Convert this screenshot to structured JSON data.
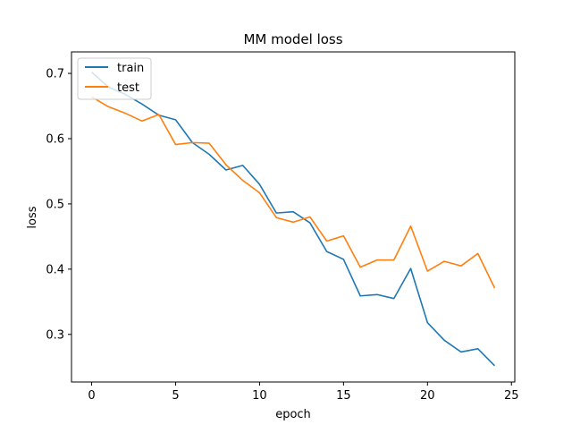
{
  "chart_data": {
    "type": "line",
    "title": "MM model loss",
    "xlabel": "epoch",
    "ylabel": "loss",
    "xlim": [
      -1.2,
      25.2
    ],
    "ylim": [
      0.227,
      0.733
    ],
    "xticks": [
      0,
      5,
      10,
      15,
      20,
      25
    ],
    "yticks": [
      0.3,
      0.4,
      0.5,
      0.6,
      0.7
    ],
    "xtick_labels": [
      "0",
      "5",
      "10",
      "15",
      "20",
      "25"
    ],
    "ytick_labels": [
      "0.3",
      "0.4",
      "0.5",
      "0.6",
      "0.7"
    ],
    "grid": false,
    "legend_position": "upper-left",
    "x": [
      0,
      1,
      2,
      3,
      4,
      5,
      6,
      7,
      8,
      9,
      10,
      11,
      12,
      13,
      14,
      15,
      16,
      17,
      18,
      19,
      20,
      21,
      22,
      23,
      24
    ],
    "series": [
      {
        "name": "train",
        "color": "#1f77b4",
        "values": [
          0.702,
          0.679,
          0.668,
          0.653,
          0.636,
          0.629,
          0.594,
          0.576,
          0.552,
          0.559,
          0.53,
          0.486,
          0.488,
          0.471,
          0.427,
          0.415,
          0.359,
          0.361,
          0.355,
          0.401,
          0.318,
          0.291,
          0.273,
          0.278,
          0.252
        ]
      },
      {
        "name": "test",
        "color": "#ff7f0e",
        "values": [
          0.664,
          0.649,
          0.639,
          0.627,
          0.637,
          0.591,
          0.594,
          0.593,
          0.56,
          0.536,
          0.517,
          0.479,
          0.472,
          0.48,
          0.443,
          0.451,
          0.403,
          0.414,
          0.414,
          0.466,
          0.397,
          0.412,
          0.405,
          0.424,
          0.371
        ]
      }
    ]
  }
}
